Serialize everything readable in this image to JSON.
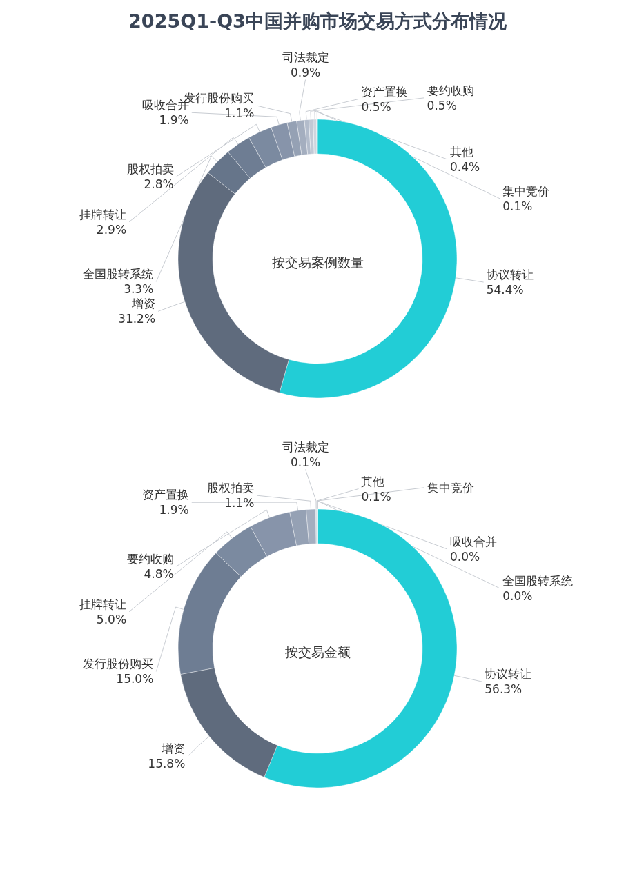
{
  "chart_data": [
    {
      "type": "donut",
      "title": "2025Q1-Q3中国并购市场交易方式分布情况",
      "subtitle": "按交易案例数量",
      "categories": [
        "协议转让",
        "增资",
        "全国股转系统",
        "挂牌转让",
        "股权拍卖",
        "吸收合并",
        "发行股份购买",
        "司法裁定",
        "资产置换",
        "要约收购",
        "其他",
        "集中竞价"
      ],
      "values": [
        54.4,
        31.2,
        3.3,
        2.9,
        2.8,
        1.9,
        1.1,
        0.9,
        0.5,
        0.5,
        0.4,
        0.1
      ],
      "value_labels": [
        "54.4%",
        "31.2%",
        "3.3%",
        "2.9%",
        "2.8%",
        "1.9%",
        "1.1%",
        "0.9%",
        "0.5%",
        "0.5%",
        "0.4%",
        "0.1%"
      ],
      "colors": [
        "#22cdd6",
        "#5f6b7d",
        "#66758a",
        "#6e7d93",
        "#7b8aa0",
        "#8794aa",
        "#95a1b4",
        "#a4aebf",
        "#b3bccb",
        "#c2c9d5",
        "#cfd5de",
        "#dde1e8"
      ]
    },
    {
      "type": "donut",
      "subtitle": "按交易金额",
      "categories": [
        "协议转让",
        "增资",
        "发行股份购买",
        "挂牌转让",
        "要约收购",
        "资产置换",
        "股权拍卖",
        "司法裁定",
        "其他",
        "集中竞价",
        "吸收合并",
        "全国股转系统"
      ],
      "values": [
        56.3,
        15.8,
        15.0,
        5.0,
        4.8,
        1.9,
        1.1,
        0.1,
        0.1,
        0,
        0.0,
        0.0
      ],
      "value_labels": [
        "56.3%",
        "15.8%",
        "15.0%",
        "5.0%",
        "4.8%",
        "1.9%",
        "1.1%",
        "0.1%",
        "0.1%",
        null,
        "0.0%",
        "0.0%"
      ],
      "colors": [
        "#22cdd6",
        "#5f6b7d",
        "#6e7d93",
        "#7b8aa0",
        "#8794aa",
        "#95a1b4",
        "#a4aebf",
        "#b3bccb",
        "#c2c9d5",
        "#cfd5de",
        "#d6dbe3",
        "#dde1e8"
      ]
    }
  ]
}
